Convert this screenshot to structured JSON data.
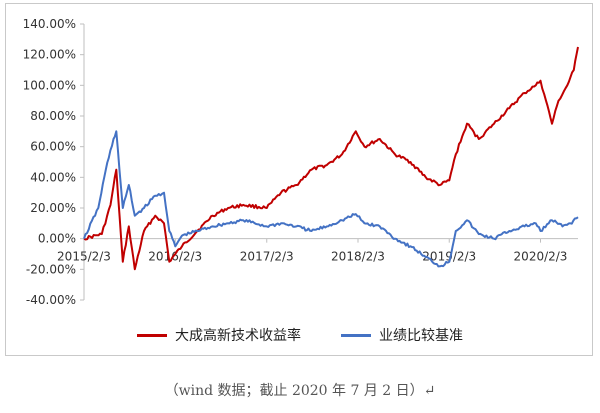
{
  "chart_data": {
    "type": "line",
    "title": "",
    "xlabel": "",
    "ylabel": "",
    "y_ticks": [
      140,
      120,
      100,
      80,
      60,
      40,
      20,
      0,
      -20,
      -40
    ],
    "y_tick_labels": [
      "140.00%",
      "120.00%",
      "100.00%",
      "80.00%",
      "60.00%",
      "40.00%",
      "20.00%",
      "0.00%",
      "-20.00%",
      "-40.00%"
    ],
    "ylim": [
      -40,
      140
    ],
    "x_tick_labels": [
      "2015/2/3",
      "2016/2/3",
      "2017/2/3",
      "2018/2/3",
      "2019/2/3",
      "2020/2/3"
    ],
    "xlim": [
      "2015/2/3",
      "2020/7/2"
    ],
    "legend_position": "bottom",
    "series": [
      {
        "name": "大成高新技术收益率",
        "color": "#c00000",
        "x": [
          "2015/2/3",
          "2015/4/15",
          "2015/5/20",
          "2015/6/12",
          "2015/7/8",
          "2015/8/1",
          "2015/8/25",
          "2015/10/1",
          "2015/11/15",
          "2015/12/20",
          "2016/1/10",
          "2016/2/3",
          "2016/3/1",
          "2016/5/1",
          "2016/7/1",
          "2016/9/1",
          "2016/11/1",
          "2017/2/3",
          "2017/4/1",
          "2017/6/1",
          "2017/8/1",
          "2017/10/1",
          "2017/12/1",
          "2018/1/25",
          "2018/3/1",
          "2018/5/1",
          "2018/7/1",
          "2018/9/1",
          "2018/11/1",
          "2018/12/28",
          "2019/2/3",
          "2019/3/1",
          "2019/4/15",
          "2019/6/1",
          "2019/8/1",
          "2019/10/1",
          "2019/12/1",
          "2020/1/15",
          "2020/2/3",
          "2020/2/25",
          "2020/3/20",
          "2020/4/15",
          "2020/5/20",
          "2020/6/15",
          "2020/7/2"
        ],
        "values": [
          0,
          3,
          22,
          45,
          -15,
          8,
          -20,
          5,
          15,
          10,
          -15,
          -10,
          -5,
          5,
          15,
          20,
          22,
          20,
          30,
          35,
          45,
          48,
          55,
          70,
          60,
          65,
          55,
          50,
          40,
          35,
          38,
          55,
          75,
          65,
          75,
          85,
          95,
          100,
          103,
          90,
          75,
          90,
          100,
          110,
          125
        ]
      },
      {
        "name": "业绩比较基准",
        "color": "#4472c4",
        "x": [
          "2015/2/3",
          "2015/4/1",
          "2015/5/1",
          "2015/6/1",
          "2015/6/12",
          "2015/7/8",
          "2015/8/1",
          "2015/8/25",
          "2015/10/1",
          "2015/11/15",
          "2015/12/20",
          "2016/1/10",
          "2016/2/3",
          "2016/3/1",
          "2016/5/1",
          "2016/7/1",
          "2016/9/1",
          "2016/11/1",
          "2017/2/3",
          "2017/4/1",
          "2017/6/1",
          "2017/8/1",
          "2017/10/1",
          "2017/12/1",
          "2018/1/25",
          "2018/3/1",
          "2018/5/1",
          "2018/7/1",
          "2018/9/1",
          "2018/11/1",
          "2018/12/28",
          "2019/2/3",
          "2019/3/1",
          "2019/4/15",
          "2019/6/1",
          "2019/8/1",
          "2019/10/1",
          "2019/12/1",
          "2020/1/15",
          "2020/2/3",
          "2020/3/20",
          "2020/5/1",
          "2020/6/1",
          "2020/7/2"
        ],
        "values": [
          0,
          20,
          45,
          65,
          70,
          20,
          35,
          15,
          20,
          28,
          30,
          5,
          -5,
          2,
          5,
          8,
          10,
          12,
          8,
          10,
          8,
          5,
          8,
          12,
          16,
          10,
          8,
          0,
          -5,
          -12,
          -18,
          -15,
          5,
          12,
          3,
          0,
          5,
          8,
          10,
          5,
          12,
          8,
          10,
          14
        ]
      }
    ]
  },
  "source_text": "（wind 数据；截止 2020 年 7 月 2 日）↵"
}
